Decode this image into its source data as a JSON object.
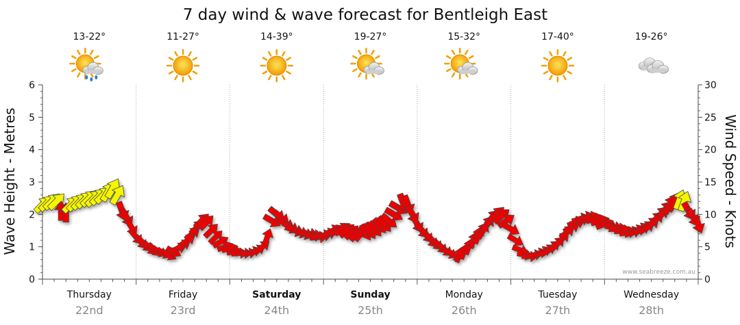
{
  "chart_data": {
    "type": "line",
    "title": "7 day wind & wave forecast for Bentleigh East",
    "ylabel_left": "Wave Height - Metres",
    "ylabel_right": "Wind Speed - Knots",
    "ylim_left": [
      0,
      6
    ],
    "ylim_right": [
      0,
      30
    ],
    "yticks_left": [
      "0",
      "1",
      "2",
      "3",
      "4",
      "5",
      "6"
    ],
    "yticks_right": [
      "0",
      "5",
      "10",
      "15",
      "20",
      "25",
      "30"
    ],
    "credit": "www.seabreeze.com.au",
    "days": [
      {
        "day": "Thursday",
        "date": "22nd",
        "temp": "13-22°",
        "weather": "sun-cloud-rain-icon",
        "bold": false
      },
      {
        "day": "Friday",
        "date": "23rd",
        "temp": "11-27°",
        "weather": "sun-icon",
        "bold": false
      },
      {
        "day": "Saturday",
        "date": "24th",
        "temp": "14-39°",
        "weather": "sun-icon",
        "bold": true
      },
      {
        "day": "Sunday",
        "date": "25th",
        "temp": "19-27°",
        "weather": "sun-cloud-icon",
        "bold": true
      },
      {
        "day": "Monday",
        "date": "26th",
        "temp": "15-32°",
        "weather": "sun-cloud-icon",
        "bold": false
      },
      {
        "day": "Tuesday",
        "date": "27th",
        "temp": "17-40°",
        "weather": "sun-icon",
        "bold": false
      },
      {
        "day": "Wednesday",
        "date": "28th",
        "temp": "19-26°",
        "weather": "cloud-icon",
        "bold": false
      }
    ],
    "series": {
      "x_day": [
        0.0,
        0.05,
        0.1,
        0.15,
        0.2,
        0.25,
        0.3,
        0.35,
        0.4,
        0.45,
        0.5,
        0.55,
        0.6,
        0.65,
        0.7,
        0.75,
        0.8,
        0.85,
        0.9,
        0.95,
        1.0,
        1.05,
        1.1,
        1.15,
        1.2,
        1.25,
        1.3,
        1.35,
        1.4,
        1.45,
        1.5,
        1.55,
        1.6,
        1.65,
        1.7,
        1.75,
        1.8,
        1.85,
        1.9,
        1.95,
        2.0,
        2.05,
        2.1,
        2.15,
        2.2,
        2.25,
        2.3,
        2.35,
        2.4,
        2.45,
        2.5,
        2.55,
        2.6,
        2.65,
        2.7,
        2.75,
        2.8,
        2.85,
        2.9,
        2.95,
        3.0,
        3.05,
        3.1,
        3.15,
        3.2,
        3.25,
        3.3,
        3.35,
        3.4,
        3.45,
        3.5,
        3.55,
        3.6,
        3.65,
        3.7,
        3.75,
        3.8,
        3.85,
        3.9,
        3.95,
        4.0,
        4.05,
        4.1,
        4.15,
        4.2,
        4.25,
        4.3,
        4.35,
        4.4,
        4.45,
        4.5,
        4.55,
        4.6,
        4.65,
        4.7,
        4.75,
        4.8,
        4.85,
        4.9,
        4.95,
        5.0,
        5.05,
        5.1,
        5.15,
        5.2,
        5.25,
        5.3,
        5.35,
        5.4,
        5.45,
        5.5,
        5.55,
        5.6,
        5.65,
        5.7,
        5.75,
        5.8,
        5.85,
        5.9,
        5.95,
        6.0,
        6.05,
        6.1,
        6.15,
        6.2,
        6.25,
        6.3,
        6.35,
        6.4,
        6.45,
        6.5,
        6.55,
        6.6,
        6.65,
        6.7,
        6.75,
        6.8,
        6.85,
        6.9,
        6.95,
        7.0
      ],
      "wave_m": [
        2.3,
        2.35,
        2.4,
        2.4,
        2.1,
        2.05,
        2.3,
        2.35,
        2.4,
        2.45,
        2.5,
        2.5,
        2.55,
        2.6,
        2.7,
        2.8,
        2.6,
        2.1,
        1.9,
        1.6,
        1.3,
        1.15,
        1.05,
        0.95,
        0.9,
        0.85,
        0.8,
        0.75,
        0.85,
        0.95,
        1.05,
        1.2,
        1.4,
        1.6,
        1.8,
        1.75,
        1.5,
        1.3,
        1.15,
        1.0,
        0.95,
        0.85,
        0.8,
        0.8,
        0.8,
        0.85,
        0.9,
        1.0,
        1.3,
        1.8,
        2.0,
        1.9,
        1.7,
        1.6,
        1.5,
        1.45,
        1.4,
        1.4,
        1.35,
        1.3,
        1.35,
        1.4,
        1.5,
        1.5,
        1.55,
        1.5,
        1.45,
        1.4,
        1.4,
        1.45,
        1.5,
        1.55,
        1.65,
        1.7,
        1.8,
        2.0,
        2.2,
        2.35,
        2.3,
        2.0,
        1.7,
        1.5,
        1.35,
        1.2,
        1.1,
        1.0,
        0.9,
        0.8,
        0.75,
        0.75,
        0.85,
        1.0,
        1.2,
        1.35,
        1.5,
        1.7,
        1.9,
        2.0,
        1.95,
        1.8,
        1.55,
        1.2,
        0.9,
        0.75,
        0.7,
        0.75,
        0.8,
        0.85,
        0.9,
        1.0,
        1.1,
        1.25,
        1.45,
        1.6,
        1.75,
        1.85,
        1.9,
        1.9,
        1.85,
        1.8,
        1.7,
        1.65,
        1.6,
        1.55,
        1.5,
        1.45,
        1.45,
        1.5,
        1.55,
        1.6,
        1.7,
        1.85,
        2.0,
        2.15,
        2.3,
        2.4,
        2.45,
        2.4,
        2.1,
        1.9,
        1.7
      ],
      "wind_kn": [
        11,
        11,
        12,
        12,
        10,
        10,
        12,
        12,
        12,
        13,
        13,
        13,
        13,
        13,
        14,
        14,
        13,
        11,
        9,
        7,
        6,
        5,
        5,
        5,
        4,
        4,
        4,
        4,
        4,
        5,
        5,
        6,
        7,
        8,
        9,
        8,
        7,
        6,
        6,
        5,
        5,
        4,
        4,
        4,
        4,
        4,
        4,
        5,
        6,
        9,
        10,
        9,
        8,
        8,
        8,
        7,
        7,
        7,
        7,
        7,
        7,
        7,
        7,
        7,
        8,
        8,
        7,
        7,
        7,
        7,
        8,
        8,
        8,
        9,
        9,
        10,
        11,
        11,
        11,
        10,
        8,
        7,
        6,
        6,
        5,
        5,
        5,
        4,
        4,
        4,
        4,
        5,
        6,
        7,
        8,
        9,
        9,
        10,
        10,
        9,
        8,
        6,
        5,
        4,
        4,
        4,
        4,
        4,
        5,
        5,
        6,
        6,
        7,
        8,
        9,
        9,
        10,
        10,
        9,
        9,
        8,
        8,
        8,
        8,
        7,
        7,
        7,
        7,
        8,
        8,
        9,
        9,
        10,
        11,
        12,
        12,
        12,
        12,
        11,
        10,
        9
      ],
      "wind_dir_deg": [
        225,
        225,
        225,
        225,
        180,
        180,
        225,
        225,
        225,
        225,
        225,
        225,
        225,
        225,
        210,
        210,
        210,
        340,
        330,
        330,
        320,
        320,
        315,
        315,
        315,
        300,
        300,
        300,
        300,
        250,
        240,
        235,
        230,
        225,
        225,
        225,
        225,
        225,
        240,
        250,
        255,
        260,
        265,
        270,
        260,
        250,
        240,
        230,
        200,
        300,
        310,
        310,
        300,
        300,
        290,
        290,
        290,
        280,
        270,
        265,
        260,
        250,
        245,
        240,
        235,
        230,
        225,
        220,
        220,
        330,
        330,
        320,
        320,
        320,
        310,
        300,
        300,
        340,
        340,
        330,
        330,
        320,
        320,
        320,
        315,
        315,
        310,
        300,
        300,
        200,
        200,
        200,
        200,
        200,
        210,
        215,
        220,
        225,
        230,
        235,
        300,
        300,
        290,
        280,
        270,
        260,
        250,
        240,
        235,
        230,
        225,
        225,
        230,
        240,
        250,
        255,
        255,
        260,
        260,
        255,
        250,
        290,
        280,
        270,
        265,
        260,
        250,
        245,
        240,
        235,
        230,
        225,
        225,
        220,
        210,
        210,
        200,
        200,
        330,
        330,
        340
      ],
      "color": [
        "yellow",
        "yellow",
        "yellow",
        "yellow",
        "red",
        "red",
        "yellow",
        "yellow",
        "yellow",
        "yellow",
        "yellow",
        "yellow",
        "yellow",
        "yellow",
        "yellow",
        "yellow",
        "yellow",
        "red",
        "red",
        "red",
        "red",
        "red",
        "red",
        "red",
        "red",
        "red",
        "red",
        "red",
        "red",
        "red",
        "red",
        "red",
        "red",
        "red",
        "red",
        "red",
        "red",
        "red",
        "red",
        "red",
        "red",
        "red",
        "red",
        "red",
        "red",
        "red",
        "red",
        "red",
        "red",
        "red",
        "red",
        "red",
        "red",
        "red",
        "red",
        "red",
        "red",
        "red",
        "red",
        "red",
        "red",
        "red",
        "red",
        "red",
        "red",
        "red",
        "red",
        "red",
        "red",
        "red",
        "red",
        "red",
        "red",
        "red",
        "red",
        "red",
        "red",
        "red",
        "red",
        "red",
        "red",
        "red",
        "red",
        "red",
        "red",
        "red",
        "red",
        "red",
        "red",
        "red",
        "red",
        "red",
        "red",
        "red",
        "red",
        "red",
        "red",
        "red",
        "red",
        "red",
        "red",
        "red",
        "red",
        "red",
        "red",
        "red",
        "red",
        "red",
        "red",
        "red",
        "red",
        "red",
        "red",
        "red",
        "red",
        "red",
        "red",
        "red",
        "red",
        "red",
        "red",
        "red",
        "red",
        "red",
        "red",
        "red",
        "red",
        "red",
        "red",
        "red",
        "red",
        "red",
        "red",
        "red",
        "red",
        "red",
        "yellow",
        "yellow",
        "red",
        "red",
        "red"
      ]
    },
    "colors": {
      "yellow": "#f5f500",
      "red": "#ee0000",
      "grid": "#aaaaaa",
      "sun": "#f5a000",
      "cloud": "#c8c8c8"
    }
  }
}
